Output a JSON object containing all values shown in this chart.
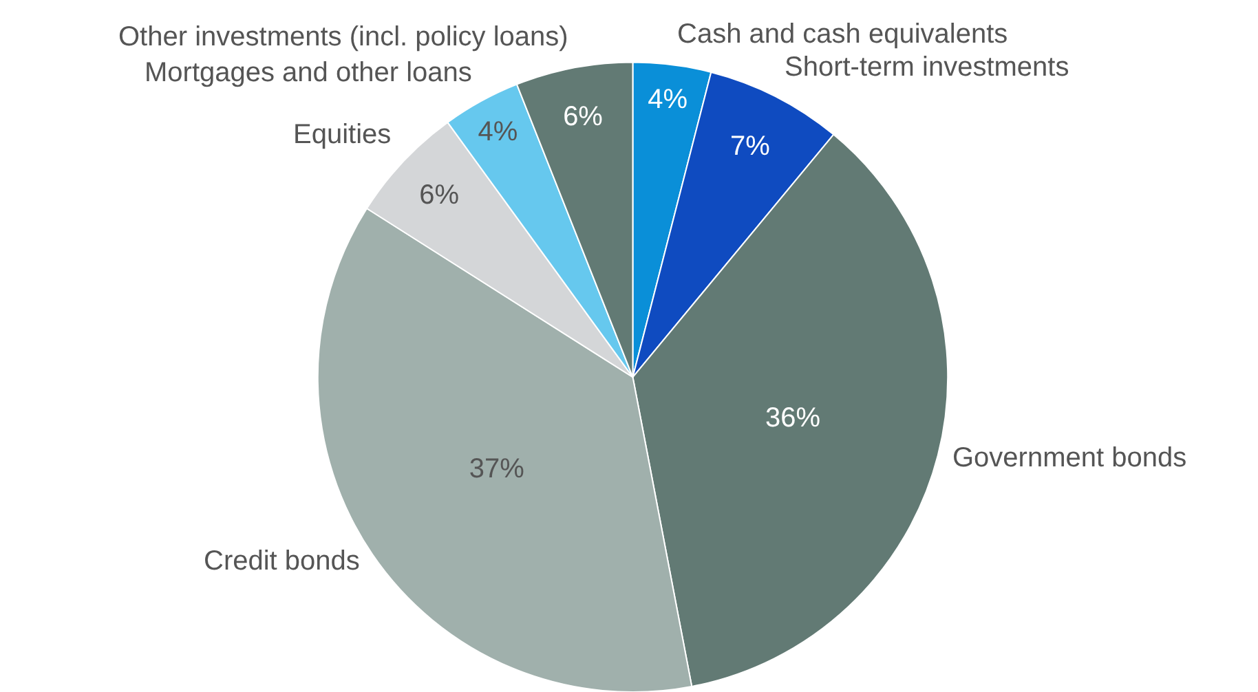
{
  "chart_data": {
    "type": "pie",
    "categories": [
      "Cash and cash equivalents",
      "Short-term investments",
      "Government bonds",
      "Credit bonds",
      "Equities",
      "Mortgages and other loans",
      "Other investments (incl. policy loans)"
    ],
    "values": [
      4,
      7,
      36,
      37,
      6,
      4,
      6
    ],
    "value_labels": [
      "4%",
      "7%",
      "36%",
      "37%",
      "6%",
      "4%",
      "6%"
    ],
    "colors": [
      "#0a8fd8",
      "#0f4bc0",
      "#627a74",
      "#a0b0ac",
      "#d4d6d8",
      "#66c8ee",
      "#627a74"
    ]
  }
}
